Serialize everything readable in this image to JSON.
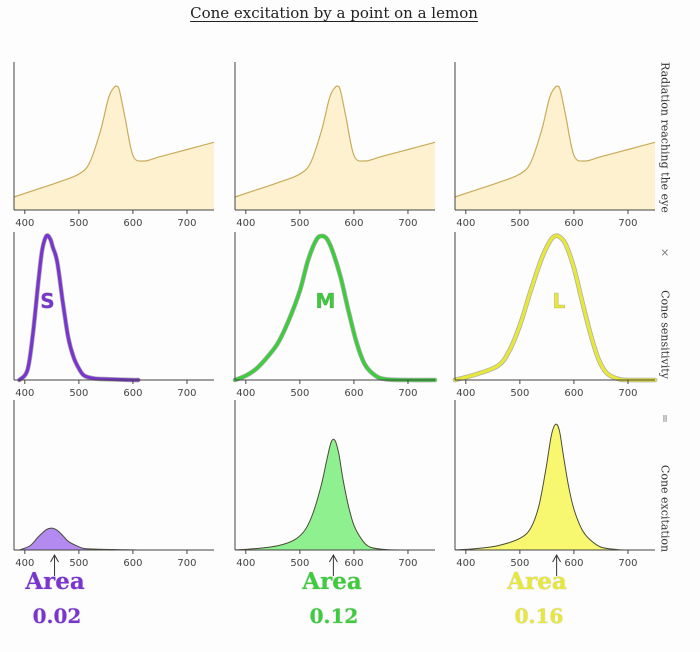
{
  "title": "Cone excitation by a point on a lemon",
  "row_labels": [
    "Radiation reaching the eye",
    "Cone sensitivity",
    "Cone excitation"
  ],
  "operators": [
    "×",
    "="
  ],
  "colors": {
    "radiation_fill": "#fdf1cf",
    "radiation_stroke": "#c9ac5a",
    "S": "#7a35d0",
    "M": "#3ccc3c",
    "L": "#e8e83a",
    "axis": "#444444",
    "tick_label": "#444444"
  },
  "chart_data": [
    {
      "type": "area",
      "name": "radiation",
      "x_ticks": [
        400,
        500,
        600,
        700
      ],
      "xlim": [
        380,
        750
      ],
      "ylim": [
        0,
        1
      ],
      "x": [
        380,
        420,
        460,
        500,
        520,
        540,
        555,
        565,
        570,
        575,
        585,
        600,
        620,
        650,
        700,
        750
      ],
      "y": [
        0.09,
        0.14,
        0.19,
        0.25,
        0.33,
        0.55,
        0.78,
        0.85,
        0.86,
        0.83,
        0.65,
        0.38,
        0.34,
        0.37,
        0.42,
        0.47
      ]
    },
    {
      "type": "line",
      "cones": [
        {
          "letter": "S",
          "xlim": [
            380,
            750
          ],
          "x_ticks": [
            400,
            500,
            600,
            700
          ],
          "ylim": [
            0,
            1
          ],
          "x": [
            390,
            405,
            415,
            425,
            432,
            440,
            447,
            452,
            460,
            470,
            480,
            490,
            500,
            510,
            530,
            560,
            600,
            610
          ],
          "y": [
            0.0,
            0.07,
            0.32,
            0.68,
            0.9,
            1.0,
            0.98,
            0.92,
            0.82,
            0.55,
            0.3,
            0.16,
            0.08,
            0.03,
            0.01,
            0.005,
            0.0,
            0.0
          ]
        },
        {
          "letter": "M",
          "xlim": [
            380,
            750
          ],
          "x_ticks": [
            400,
            500,
            600,
            700
          ],
          "ylim": [
            0,
            1
          ],
          "x": [
            380,
            400,
            420,
            440,
            460,
            480,
            500,
            515,
            530,
            540,
            550,
            560,
            575,
            590,
            605,
            620,
            640,
            660,
            700,
            750
          ],
          "y": [
            0.0,
            0.03,
            0.08,
            0.16,
            0.26,
            0.42,
            0.62,
            0.83,
            0.97,
            1.0,
            0.98,
            0.9,
            0.72,
            0.48,
            0.26,
            0.11,
            0.03,
            0.005,
            0.0,
            0.0
          ]
        },
        {
          "letter": "L",
          "xlim": [
            380,
            750
          ],
          "x_ticks": [
            400,
            500,
            600,
            700
          ],
          "ylim": [
            0,
            1
          ],
          "x": [
            380,
            420,
            460,
            480,
            500,
            520,
            540,
            555,
            565,
            575,
            585,
            600,
            615,
            630,
            645,
            660,
            680,
            700,
            750
          ],
          "y": [
            0.0,
            0.04,
            0.1,
            0.2,
            0.38,
            0.62,
            0.84,
            0.96,
            1.0,
            0.99,
            0.94,
            0.78,
            0.55,
            0.33,
            0.15,
            0.05,
            0.01,
            0.0,
            0.0
          ]
        }
      ]
    },
    {
      "type": "area",
      "excitation": [
        {
          "letter": "S",
          "xlim": [
            380,
            750
          ],
          "x_ticks": [
            400,
            500,
            600,
            700
          ],
          "ylim": [
            0,
            1
          ],
          "x": [
            390,
            410,
            425,
            440,
            450,
            460,
            470,
            480,
            495,
            510,
            540,
            580,
            610
          ],
          "y": [
            0.0,
            0.03,
            0.09,
            0.14,
            0.15,
            0.135,
            0.1,
            0.06,
            0.03,
            0.01,
            0.005,
            0.002,
            0.0
          ],
          "area_label": "Area",
          "area_value": "0.02",
          "marker_x": 455
        },
        {
          "letter": "M",
          "xlim": [
            380,
            750
          ],
          "x_ticks": [
            400,
            500,
            600,
            700
          ],
          "ylim": [
            0,
            1
          ],
          "x": [
            380,
            420,
            460,
            490,
            510,
            525,
            540,
            550,
            558,
            565,
            572,
            580,
            590,
            600,
            615,
            630,
            660,
            700,
            750
          ],
          "y": [
            0.0,
            0.01,
            0.03,
            0.07,
            0.14,
            0.26,
            0.45,
            0.62,
            0.74,
            0.75,
            0.66,
            0.48,
            0.3,
            0.17,
            0.07,
            0.02,
            0.003,
            0.0,
            0.0
          ],
          "area_label": "Area",
          "area_value": "0.12",
          "marker_x": 562
        },
        {
          "letter": "L",
          "xlim": [
            380,
            750
          ],
          "x_ticks": [
            400,
            500,
            600,
            700
          ],
          "ylim": [
            0,
            1
          ],
          "x": [
            380,
            420,
            460,
            500,
            520,
            535,
            548,
            558,
            566,
            573,
            580,
            590,
            600,
            615,
            630,
            650,
            680,
            700,
            750
          ],
          "y": [
            0.0,
            0.01,
            0.03,
            0.08,
            0.15,
            0.3,
            0.55,
            0.78,
            0.86,
            0.82,
            0.66,
            0.44,
            0.28,
            0.14,
            0.07,
            0.02,
            0.003,
            0.0,
            0.0
          ],
          "area_label": "Area",
          "area_value": "0.16",
          "marker_x": 568
        }
      ]
    }
  ]
}
